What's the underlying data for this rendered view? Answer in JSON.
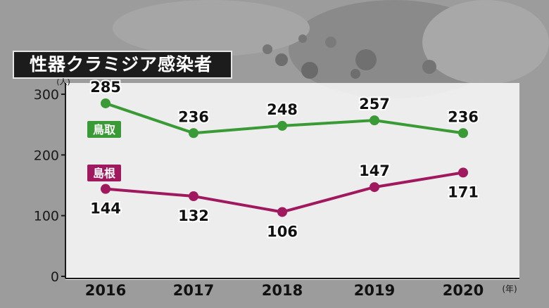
{
  "chart_data": {
    "type": "line",
    "title": "性器クラミジア感染者",
    "y_unit": "(人)",
    "x_unit": "(年)",
    "categories": [
      "2016",
      "2017",
      "2018",
      "2019",
      "2020"
    ],
    "ylim": [
      0,
      300
    ],
    "yticks": [
      "0",
      "100",
      "200",
      "300"
    ],
    "grid": false,
    "series": [
      {
        "name": "鳥取",
        "values": [
          285,
          236,
          248,
          257,
          236
        ],
        "color": "#3a9a35"
      },
      {
        "name": "島根",
        "values": [
          144,
          132,
          106,
          147,
          171
        ],
        "color": "#a0195f"
      }
    ]
  }
}
